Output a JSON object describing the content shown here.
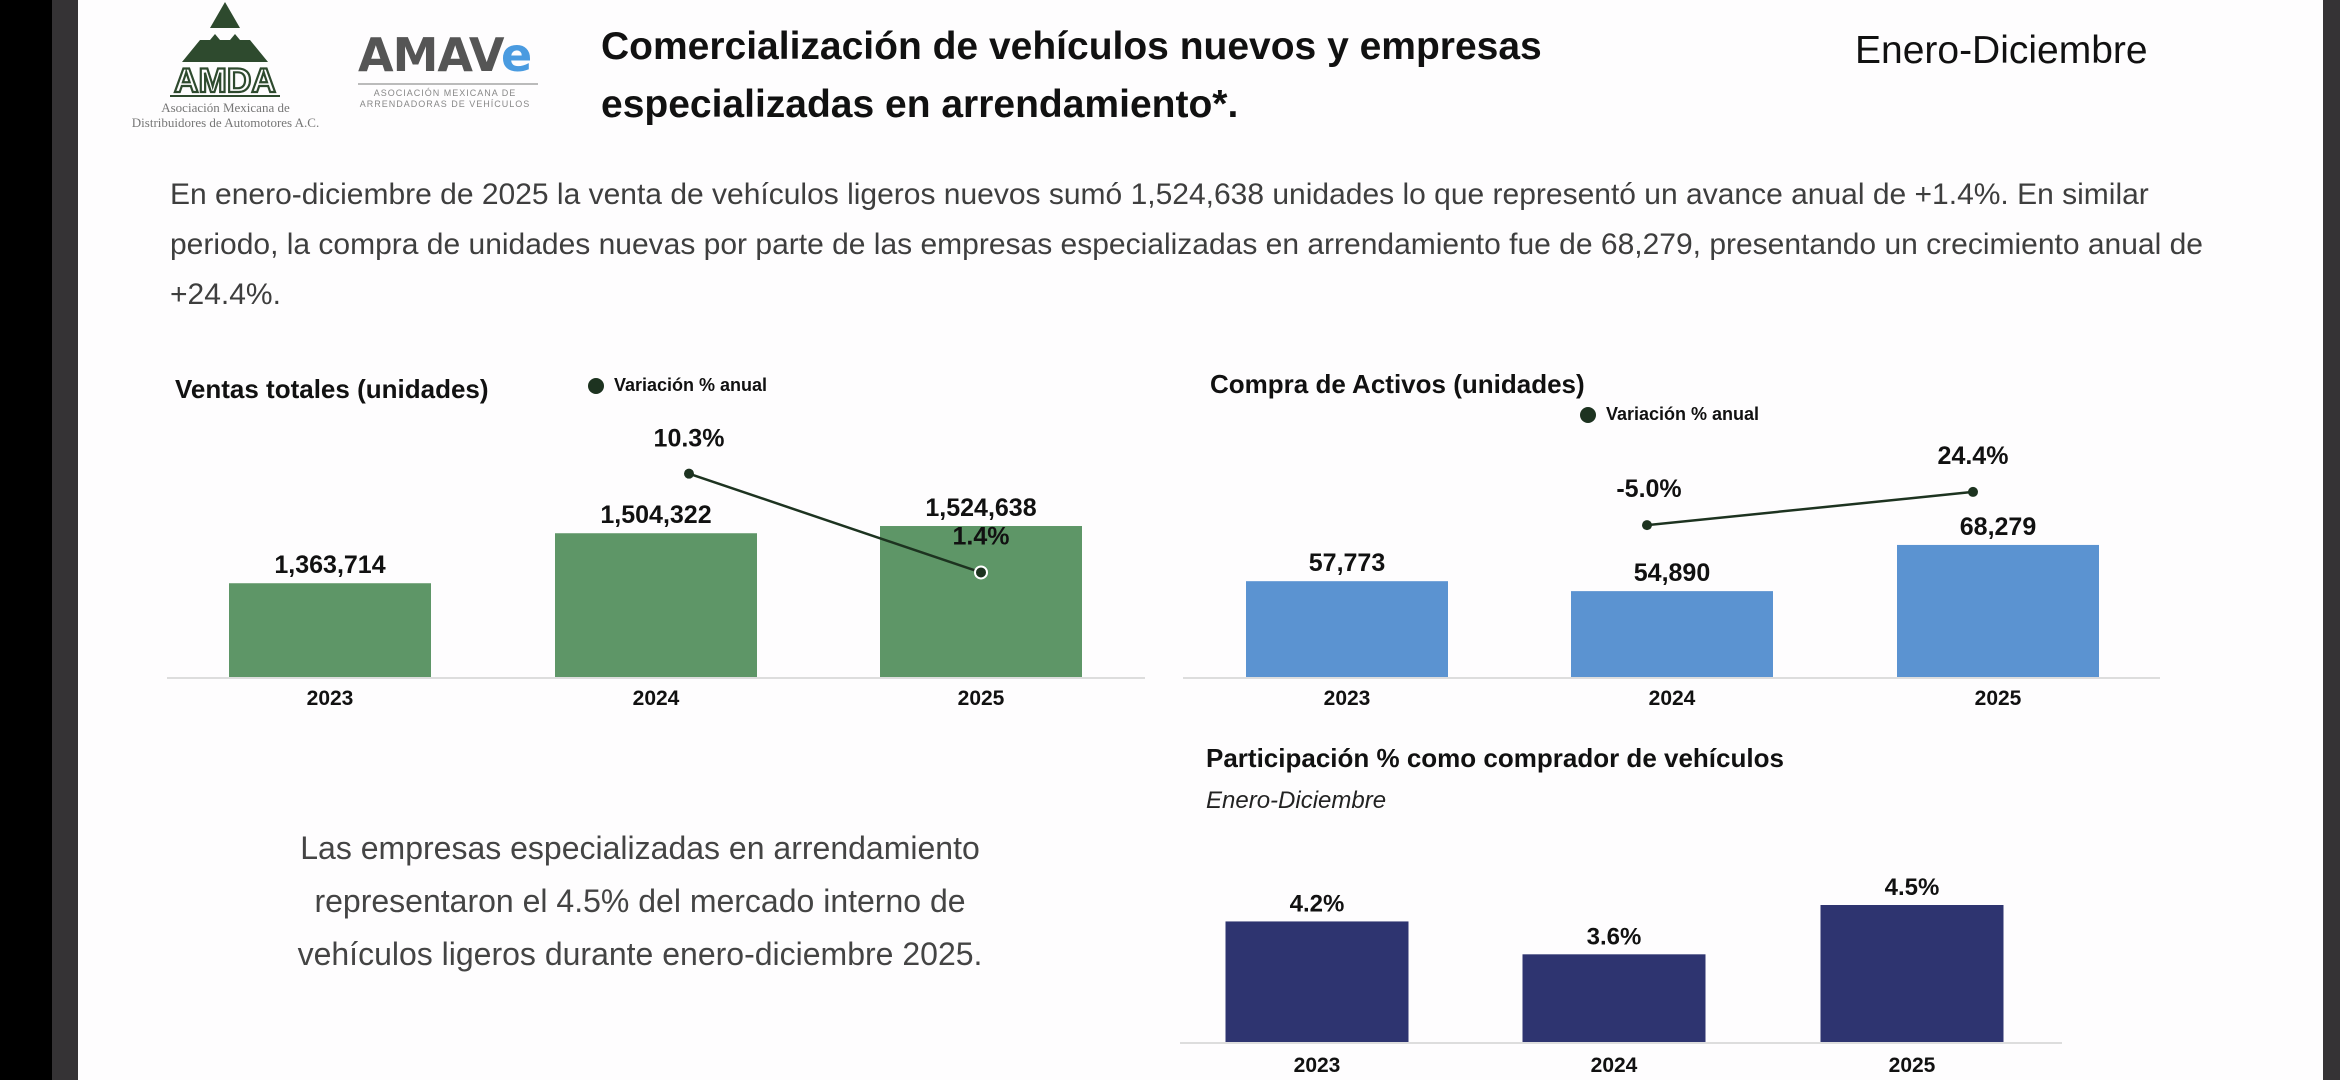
{
  "header": {
    "amda_logo": {
      "wordmark": "AMDA",
      "caption_line1": "Asociación Mexicana de",
      "caption_line2": "Distribuidores de Automotores A.C."
    },
    "amave_logo": {
      "wordmark_main": "AMAV",
      "wordmark_accent": "e",
      "caption_line1": "ASOCIACIÓN MEXICANA DE",
      "caption_line2": "ARRENDADORAS DE VEHÍCULOS"
    },
    "title_line1": "Comercialización de vehículos nuevos y empresas",
    "title_line2": "especializadas en arrendamiento*.",
    "period": "Enero-Diciembre"
  },
  "intro_text": "En enero-diciembre de 2025 la venta de vehículos ligeros nuevos sumó 1,524,638 unidades lo que representó un avance anual de +1.4%. En similar periodo, la compra de unidades nuevas por parte de las empresas especializadas en arrendamiento fue de 68,279, presentando un crecimiento anual de +24.4%.",
  "side_note": "Las empresas especializadas en arrendamiento representaron el 4.5% del mercado interno de vehículos ligeros durante enero-diciembre 2025.",
  "colors": {
    "sales_bar": "#5e9667",
    "assets_bar": "#5b93d1",
    "share_bar": "#2e3470",
    "variation_line": "#1d3320",
    "axis": "#dddddd"
  },
  "chart_data": [
    {
      "id": "ventas",
      "type": "bar",
      "title": "Ventas totales (unidades)",
      "legend": "Variación % anual",
      "legend_position": "top",
      "categories": [
        "2023",
        "2024",
        "2025"
      ],
      "values": [
        1363714,
        1504322,
        1524638
      ],
      "value_labels": [
        "1,363,714",
        "1,504,322",
        "1,524,638"
      ],
      "ylim": [
        0,
        1750000
      ],
      "overlay_line": {
        "name": "Variación % anual",
        "type": "line",
        "categories": [
          "2024",
          "2025"
        ],
        "values": [
          10.3,
          1.4
        ],
        "labels": [
          "10.3%",
          "1.4%"
        ]
      },
      "grid": false
    },
    {
      "id": "compra",
      "type": "bar",
      "title": "Compra de Activos (unidades)",
      "legend": "Variación % anual",
      "legend_position": "top",
      "categories": [
        "2023",
        "2024",
        "2025"
      ],
      "values": [
        57773,
        54890,
        68279
      ],
      "value_labels": [
        "57,773",
        "54,890",
        "68,279"
      ],
      "ylim": [
        0,
        120000
      ],
      "overlay_line": {
        "name": "Variación % anual",
        "type": "line",
        "categories": [
          "2024",
          "2025"
        ],
        "values": [
          -5.0,
          24.4
        ],
        "labels": [
          "-5.0%",
          "24.4%"
        ]
      },
      "grid": false
    },
    {
      "id": "participacion",
      "type": "bar",
      "title": "Participación % como comprador de vehículos",
      "subtitle": "Enero-Diciembre",
      "categories": [
        "2023",
        "2024",
        "2025"
      ],
      "values": [
        4.2,
        3.6,
        4.5
      ],
      "value_labels": [
        "4.2%",
        "3.6%",
        "4.5%"
      ],
      "ylim": [
        0,
        5.0
      ],
      "grid": false
    }
  ]
}
